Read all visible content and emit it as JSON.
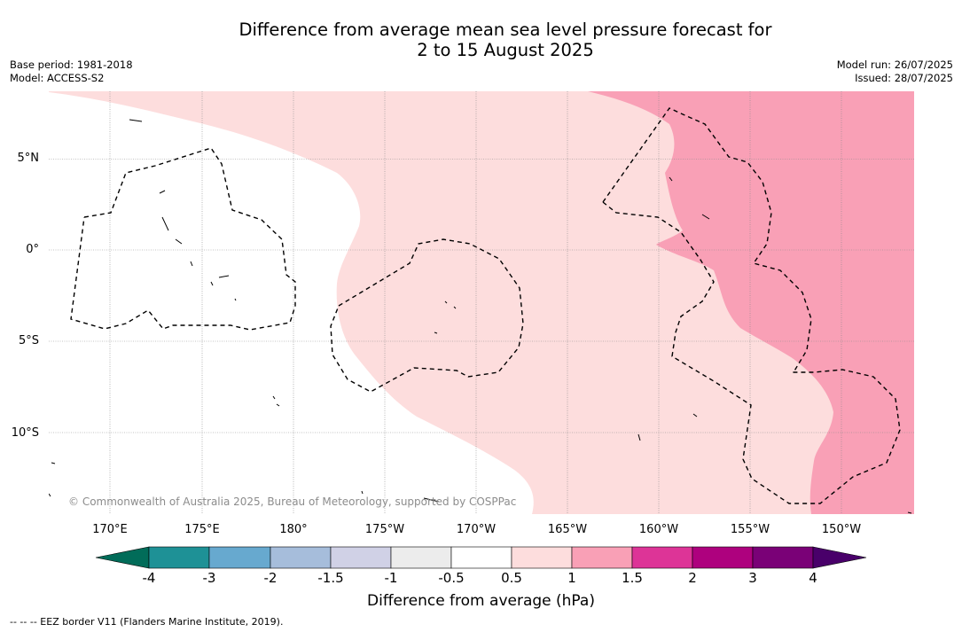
{
  "title": {
    "line1": "Difference from average mean sea level pressure forecast for",
    "line2": "2 to 15 August 2025"
  },
  "meta": {
    "base_period": "Base period: 1981-2018",
    "model": "Model: ACCESS-S2",
    "model_run": "Model run: 26/07/2025",
    "issued": "Issued: 28/07/2025"
  },
  "map": {
    "latitude_labels": [
      "5°N",
      "0°",
      "5°S",
      "10°S"
    ],
    "longitude_labels": [
      "170°E",
      "175°E",
      "180°",
      "175°W",
      "170°W",
      "165°W",
      "160°W",
      "155°W",
      "150°W"
    ],
    "copyright": "© Commonwealth of Australia 2025, Bureau of Meteorology, supported by COSPPac",
    "shading": [
      {
        "range": "-0.5 to 0.5 hPa",
        "color": "#ffffff",
        "area": "west"
      },
      {
        "range": "0.5 to 1 hPa",
        "color": "#fddddd",
        "area": "central"
      },
      {
        "range": "1 to 1.5 hPa",
        "color": "#f9a0b6",
        "area": "east"
      }
    ]
  },
  "legend": {
    "label": "Difference from average (hPa)",
    "ticks": [
      "-4",
      "-3",
      "-2",
      "-1.5",
      "-1",
      "-0.5",
      "0.5",
      "1",
      "1.5",
      "2",
      "3",
      "4"
    ],
    "colors": [
      "#1e9196",
      "#67a9cf",
      "#a6bddb",
      "#d0d1e6",
      "#ececec",
      "#ffffff",
      "#fddddd",
      "#f9a0b6",
      "#dd3497",
      "#ae017e",
      "#7a0177"
    ],
    "extend_low_color": "#016c59",
    "extend_high_color": "#49006a"
  },
  "footnote": "--  --  -- EEZ border V11 (Flanders Marine Institute, 2019)."
}
